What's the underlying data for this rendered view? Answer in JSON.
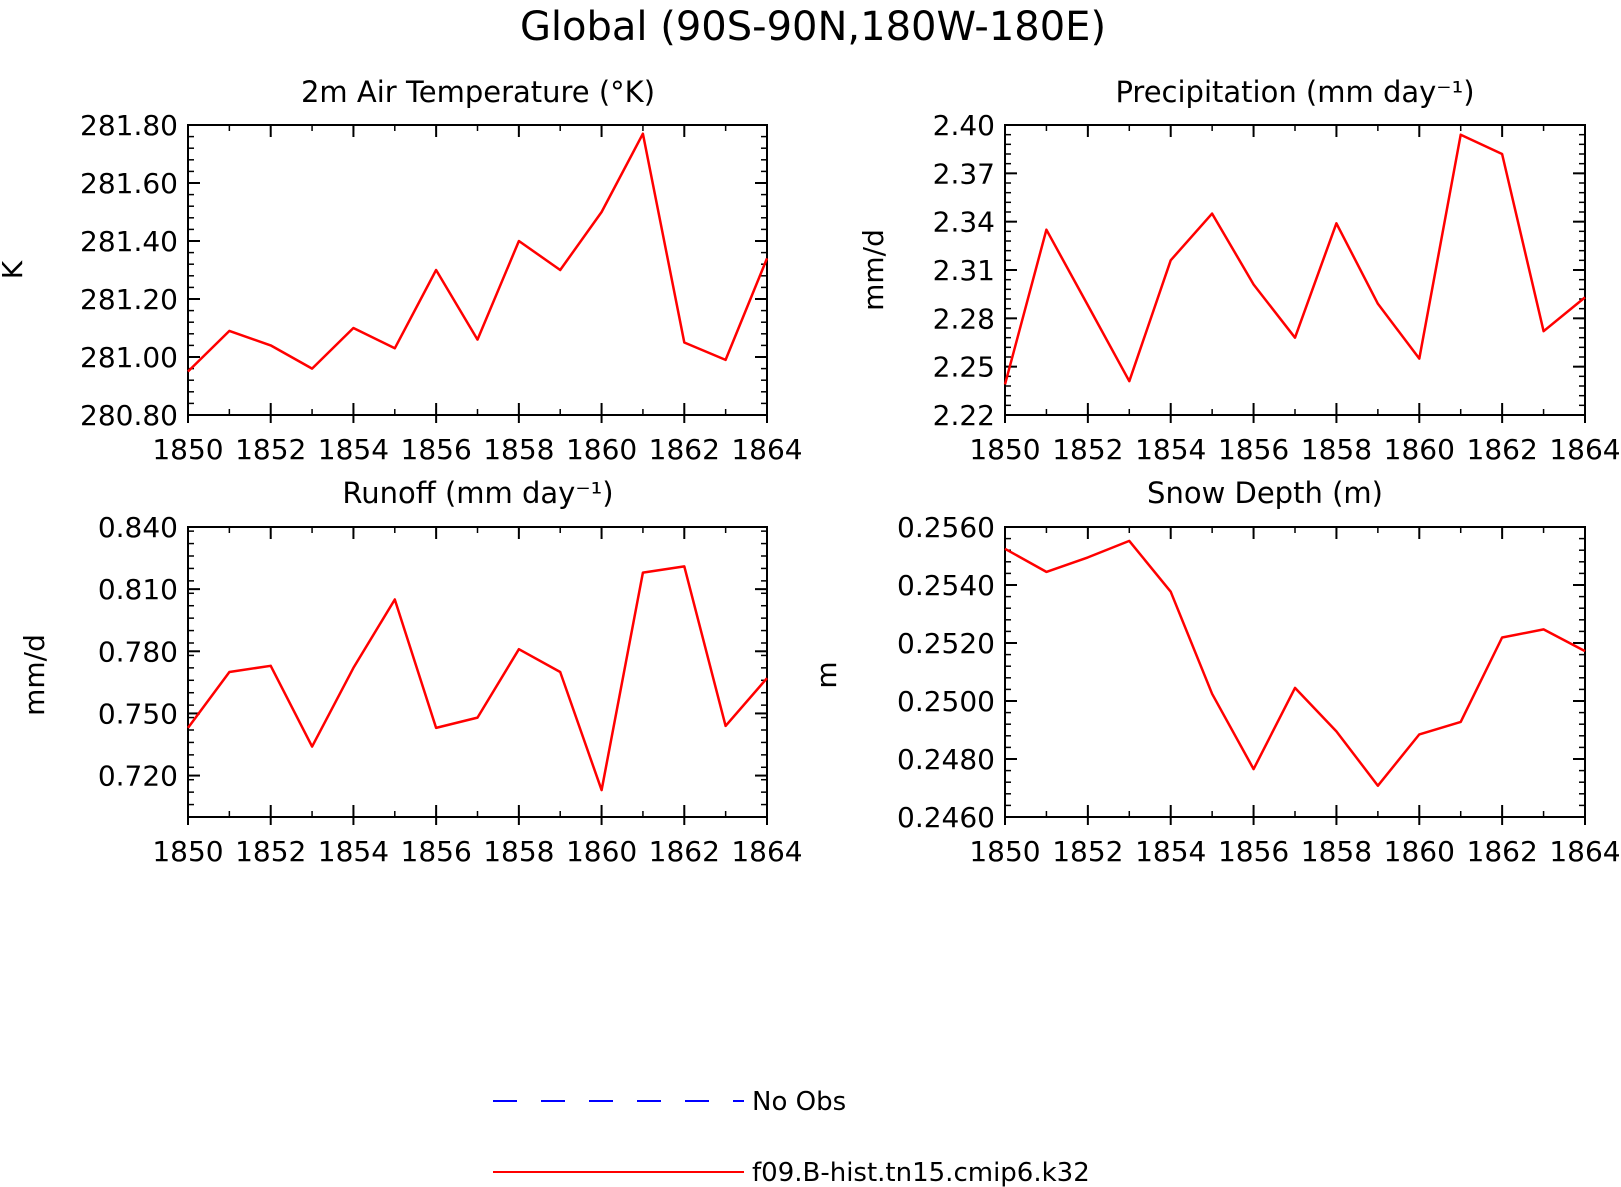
{
  "figure": {
    "title": "Global (90S-90N,180W-180E)"
  },
  "legend": {
    "items": [
      {
        "label": "No Obs",
        "color": "#0000ff",
        "style": "dashed"
      },
      {
        "label": "f09.B-hist.tn15.cmip6.k32",
        "color": "#ff0000",
        "style": "solid"
      }
    ]
  },
  "chart_data": [
    {
      "type": "line",
      "title": "2m Air Temperature (°K)",
      "xlabel": "",
      "ylabel": "K",
      "xlim": [
        1850,
        1864
      ],
      "ylim": [
        280.8,
        281.8
      ],
      "x_ticks": [
        1850,
        1852,
        1854,
        1856,
        1858,
        1860,
        1862,
        1864
      ],
      "y_ticks": [
        "280.80",
        "281.00",
        "281.20",
        "281.40",
        "281.60",
        "281.80"
      ],
      "y_minor_step": 0.04,
      "grid": false,
      "x": [
        1850,
        1851,
        1852,
        1853,
        1854,
        1855,
        1856,
        1857,
        1858,
        1859,
        1860,
        1861,
        1862,
        1863,
        1864
      ],
      "series": [
        {
          "color": "#ff0000",
          "values": [
            280.95,
            281.09,
            281.04,
            280.96,
            281.1,
            281.03,
            281.3,
            281.06,
            281.4,
            281.3,
            281.5,
            281.77,
            281.05,
            280.99,
            281.34
          ]
        }
      ]
    },
    {
      "type": "line",
      "title": "Precipitation (mm day⁻¹)",
      "xlabel": "",
      "ylabel": "mm/d",
      "xlim": [
        1850,
        1864
      ],
      "ylim": [
        2.22,
        2.4
      ],
      "x_ticks": [
        1850,
        1852,
        1854,
        1856,
        1858,
        1860,
        1862,
        1864
      ],
      "y_ticks": [
        "2.22",
        "2.25",
        "2.28",
        "2.31",
        "2.34",
        "2.37",
        "2.40"
      ],
      "y_minor_step": 0.006,
      "grid": false,
      "x": [
        1850,
        1851,
        1852,
        1853,
        1854,
        1855,
        1856,
        1857,
        1858,
        1859,
        1860,
        1861,
        1862,
        1863,
        1864
      ],
      "series": [
        {
          "color": "#ff0000",
          "values": [
            2.239,
            2.335,
            2.288,
            2.241,
            2.316,
            2.345,
            2.301,
            2.268,
            2.339,
            2.289,
            2.255,
            2.394,
            2.382,
            2.272,
            2.293
          ]
        }
      ]
    },
    {
      "type": "line",
      "title": "Runoff (mm day⁻¹)",
      "xlabel": "",
      "ylabel": "mm/d",
      "xlim": [
        1850,
        1864
      ],
      "ylim": [
        0.7,
        0.84
      ],
      "x_ticks": [
        1850,
        1852,
        1854,
        1856,
        1858,
        1860,
        1862,
        1864
      ],
      "y_ticks": [
        "0.720",
        "0.750",
        "0.780",
        "0.810",
        "0.840"
      ],
      "y_minor_step": 0.006,
      "grid": false,
      "x": [
        1850,
        1851,
        1852,
        1853,
        1854,
        1855,
        1856,
        1857,
        1858,
        1859,
        1860,
        1861,
        1862,
        1863,
        1864
      ],
      "series": [
        {
          "color": "#ff0000",
          "values": [
            0.743,
            0.77,
            0.773,
            0.734,
            0.772,
            0.805,
            0.743,
            0.748,
            0.781,
            0.77,
            0.713,
            0.818,
            0.821,
            0.744,
            0.767
          ]
        }
      ]
    },
    {
      "type": "line",
      "title": "Snow Depth (m)",
      "xlabel": "",
      "ylabel": "m",
      "xlim": [
        1850,
        1864
      ],
      "ylim": [
        0.246,
        0.256
      ],
      "x_ticks": [
        1850,
        1852,
        1854,
        1856,
        1858,
        1860,
        1862,
        1864
      ],
      "y_ticks": [
        "0.2460",
        "0.2480",
        "0.2500",
        "0.2520",
        "0.2540",
        "0.2560"
      ],
      "y_minor_step": 0.0004,
      "grid": false,
      "x": [
        1850,
        1851,
        1852,
        1853,
        1854,
        1855,
        1856,
        1857,
        1858,
        1859,
        1860,
        1861,
        1862,
        1863,
        1864
      ],
      "series": [
        {
          "color": "#ff0000",
          "values": [
            0.25525,
            0.25445,
            0.25495,
            0.25552,
            0.25377,
            0.25025,
            0.24765,
            0.25045,
            0.24895,
            0.24708,
            0.24885,
            0.24928,
            0.25219,
            0.25247,
            0.25172
          ]
        }
      ]
    }
  ]
}
